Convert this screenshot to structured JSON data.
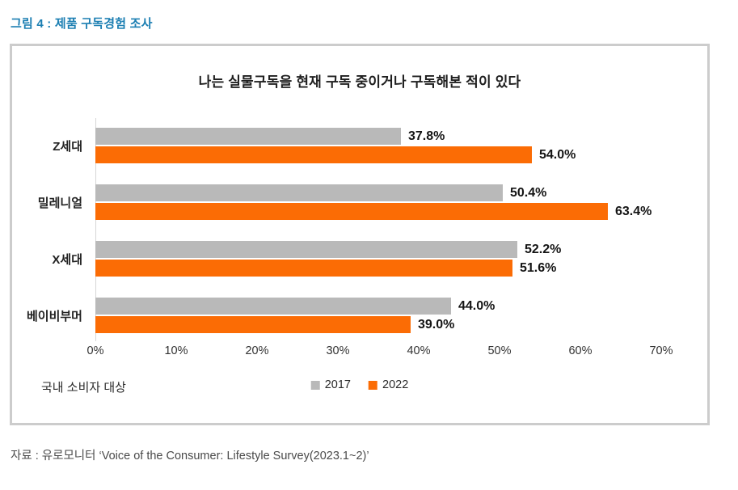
{
  "figure": {
    "title": "그림 4 : 제품 구독경험 조사",
    "source": "자료 : 유로모니터 ‘Voice of the Consumer: Lifestyle Survey(2023.1~2)’"
  },
  "chart_data": {
    "type": "bar",
    "orientation": "horizontal",
    "title": "나는 실물구독을 현재 구독 중이거나 구독해본 적이 있다",
    "categories": [
      "Z세대",
      "밀레니얼",
      "X세대",
      "베이비부머"
    ],
    "series": [
      {
        "name": "2017",
        "color": "#B9B9B9",
        "values": [
          37.8,
          50.4,
          52.2,
          44.0
        ],
        "labels": [
          "37.8%",
          "50.4%",
          "52.2%",
          "44.0%"
        ]
      },
      {
        "name": "2022",
        "color": "#FB6C05",
        "values": [
          54.0,
          63.4,
          51.6,
          39.0
        ],
        "labels": [
          "54.0%",
          "63.4%",
          "51.6%",
          "39.0%"
        ]
      }
    ],
    "x_ticks": [
      "0%",
      "10%",
      "20%",
      "30%",
      "40%",
      "50%",
      "60%",
      "70%"
    ],
    "xlim": [
      0,
      70
    ],
    "grid": false,
    "legend_position": "bottom-center",
    "note": "국내 소비자 대상"
  },
  "colors": {
    "figure_title": "#1B7EB2",
    "bar_2017": "#B9B9B9",
    "bar_2022": "#FB6C05",
    "card_border": "#CCCCCC",
    "axis_line": "#D6D6D6"
  }
}
